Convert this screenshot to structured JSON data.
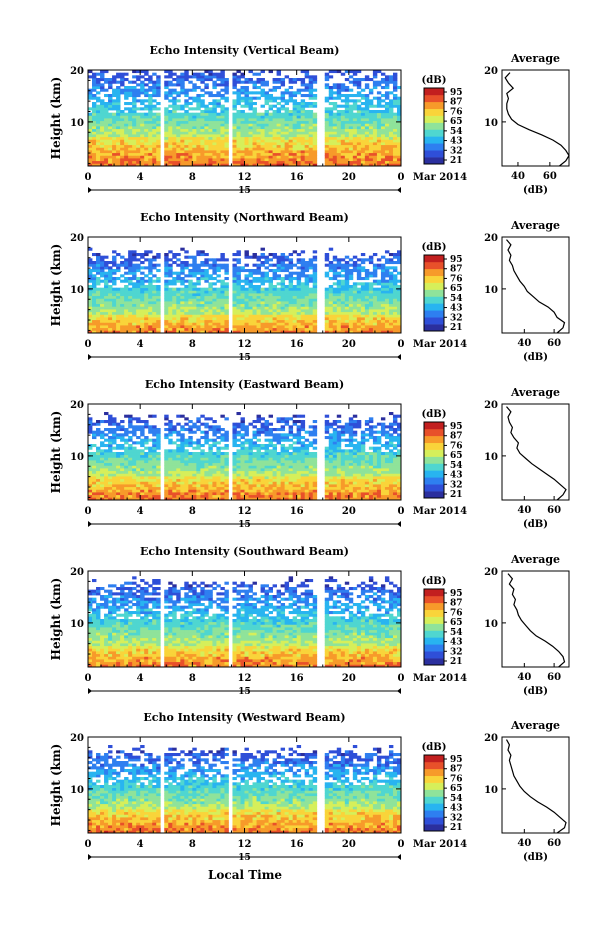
{
  "figure": {
    "bottom_xlabel": "Local Time",
    "date_label": "Mar 2014",
    "date_day": "15"
  },
  "colorbar": {
    "unit": "(dB)",
    "ticks": [
      "95",
      "87",
      "76",
      "65",
      "54",
      "43",
      "32",
      "21"
    ],
    "colors": [
      "#2b2f9e",
      "#2f4fd8",
      "#2e7ff0",
      "#28b4f0",
      "#4fd6d0",
      "#8fe39a",
      "#d6ef5a",
      "#f9d43a",
      "#f79a2a",
      "#e8502a",
      "#c21f1f"
    ]
  },
  "chart_data": [
    {
      "type": "heatmap",
      "title": "Echo Intensity (Vertical Beam)",
      "ylabel": "Height (km)",
      "x_ticks": [
        "0",
        "4",
        "8",
        "12",
        "16",
        "20",
        "0"
      ],
      "xlim": [
        0,
        24
      ],
      "y_ticks": [
        "10",
        "20"
      ],
      "ylim": [
        1.5,
        20
      ],
      "gaps_hours": [
        [
          5.5,
          5.9
        ],
        [
          10.8,
          11.2
        ],
        [
          17.6,
          18.0
        ]
      ],
      "top_km": 20,
      "strong_km": 7,
      "profile": {
        "title": "Average",
        "xlabel": "(dB)",
        "x_ticks": [
          "40",
          "60"
        ],
        "xlim": [
          30,
          72
        ],
        "ylim": [
          1.5,
          20
        ],
        "y_ticks": [
          "10",
          "20"
        ],
        "heights": [
          1.5,
          2.5,
          3.5,
          4.5,
          5.5,
          6.5,
          7.5,
          8.5,
          9.5,
          10.5,
          11.5,
          12.5,
          13.5,
          14.5,
          15.5,
          16.5,
          17.5,
          18.5,
          19.5
        ],
        "values": [
          66,
          70,
          72,
          70,
          67,
          62,
          55,
          47,
          40,
          36,
          34,
          33,
          33,
          34,
          33,
          37,
          34,
          32,
          35
        ]
      }
    },
    {
      "type": "heatmap",
      "title": "Echo Intensity (Northward Beam)",
      "ylabel": "Height (km)",
      "x_ticks": [
        "0",
        "4",
        "8",
        "12",
        "16",
        "20",
        "0"
      ],
      "xlim": [
        0,
        24
      ],
      "y_ticks": [
        "10",
        "20"
      ],
      "ylim": [
        1.5,
        20
      ],
      "gaps_hours": [
        [
          5.5,
          5.9
        ],
        [
          10.8,
          11.2
        ],
        [
          17.6,
          18.0
        ]
      ],
      "top_km": 17,
      "strong_km": 5,
      "profile": {
        "title": "Average",
        "xlabel": "(dB)",
        "x_ticks": [
          "40",
          "60"
        ],
        "xlim": [
          25,
          70
        ],
        "ylim": [
          1.5,
          20
        ],
        "y_ticks": [
          "10",
          "20"
        ],
        "heights": [
          1.5,
          2.5,
          3.5,
          4.5,
          5.5,
          6.5,
          7.5,
          8.5,
          9.5,
          10.5,
          11.5,
          12.5,
          13.5,
          14.5,
          15.5,
          16.5,
          17.5,
          18.5,
          19.5
        ],
        "values": [
          62,
          66,
          67,
          62,
          60,
          56,
          50,
          46,
          42,
          40,
          37,
          35,
          33,
          32,
          30,
          31,
          29,
          31,
          28
        ]
      }
    },
    {
      "type": "heatmap",
      "title": "Echo Intensity (Eastward Beam)",
      "ylabel": "Height (km)",
      "x_ticks": [
        "0",
        "4",
        "8",
        "12",
        "16",
        "20",
        "0"
      ],
      "xlim": [
        0,
        24
      ],
      "y_ticks": [
        "10",
        "20"
      ],
      "ylim": [
        1.5,
        20
      ],
      "gaps_hours": [
        [
          5.5,
          5.9
        ],
        [
          10.8,
          11.2
        ],
        [
          17.6,
          18.0
        ]
      ],
      "top_km": 17.5,
      "strong_km": 6,
      "profile": {
        "title": "Average",
        "xlabel": "(dB)",
        "x_ticks": [
          "40",
          "60"
        ],
        "xlim": [
          25,
          70
        ],
        "ylim": [
          1.5,
          20
        ],
        "y_ticks": [
          "10",
          "20"
        ],
        "heights": [
          1.5,
          2.5,
          3.5,
          4.5,
          5.5,
          6.5,
          7.5,
          8.5,
          9.5,
          10.5,
          11.5,
          12.5,
          13.5,
          14.5,
          15.5,
          16.5,
          17.5,
          18.5,
          19.5
        ],
        "values": [
          62,
          66,
          68,
          64,
          60,
          55,
          50,
          45,
          41,
          37,
          35,
          36,
          33,
          31,
          32,
          30,
          29,
          31,
          28
        ]
      }
    },
    {
      "type": "heatmap",
      "title": "Echo Intensity (Southward Beam)",
      "ylabel": "Height (km)",
      "x_ticks": [
        "0",
        "4",
        "8",
        "12",
        "16",
        "20",
        "0"
      ],
      "xlim": [
        0,
        24
      ],
      "y_ticks": [
        "10",
        "20"
      ],
      "ylim": [
        1.5,
        20
      ],
      "gaps_hours": [
        [
          5.5,
          5.9
        ],
        [
          10.8,
          11.2
        ],
        [
          17.6,
          18.0
        ]
      ],
      "top_km": 18,
      "strong_km": 5.5,
      "profile": {
        "title": "Average",
        "xlabel": "(dB)",
        "x_ticks": [
          "40",
          "60"
        ],
        "xlim": [
          25,
          70
        ],
        "ylim": [
          1.5,
          20
        ],
        "y_ticks": [
          "10",
          "20"
        ],
        "heights": [
          1.5,
          2.5,
          3.5,
          4.5,
          5.5,
          6.5,
          7.5,
          8.5,
          9.5,
          10.5,
          11.5,
          12.5,
          13.5,
          14.5,
          15.5,
          16.5,
          17.5,
          18.5,
          19.5
        ],
        "values": [
          63,
          67,
          66,
          63,
          59,
          54,
          48,
          44,
          41,
          38,
          36,
          35,
          33,
          34,
          32,
          33,
          30,
          32,
          29
        ]
      }
    },
    {
      "type": "heatmap",
      "title": "Echo Intensity (Westward Beam)",
      "ylabel": "Height (km)",
      "x_ticks": [
        "0",
        "4",
        "8",
        "12",
        "16",
        "20",
        "0"
      ],
      "xlim": [
        0,
        24
      ],
      "y_ticks": [
        "10",
        "20"
      ],
      "ylim": [
        1.5,
        20
      ],
      "gaps_hours": [
        [
          5.5,
          5.9
        ],
        [
          10.8,
          11.2
        ],
        [
          17.6,
          18.0
        ]
      ],
      "top_km": 17.5,
      "strong_km": 6,
      "profile": {
        "title": "Average",
        "xlabel": "(dB)",
        "x_ticks": [
          "40",
          "60"
        ],
        "xlim": [
          25,
          70
        ],
        "ylim": [
          1.5,
          20
        ],
        "y_ticks": [
          "10",
          "20"
        ],
        "heights": [
          1.5,
          2.5,
          3.5,
          4.5,
          5.5,
          6.5,
          7.5,
          8.5,
          9.5,
          10.5,
          11.5,
          12.5,
          13.5,
          14.5,
          15.5,
          16.5,
          17.5,
          18.5,
          19.5
        ],
        "values": [
          62,
          67,
          68,
          64,
          60,
          55,
          49,
          44,
          40,
          37,
          35,
          33,
          32,
          31,
          30,
          31,
          29,
          30,
          28
        ]
      }
    }
  ]
}
